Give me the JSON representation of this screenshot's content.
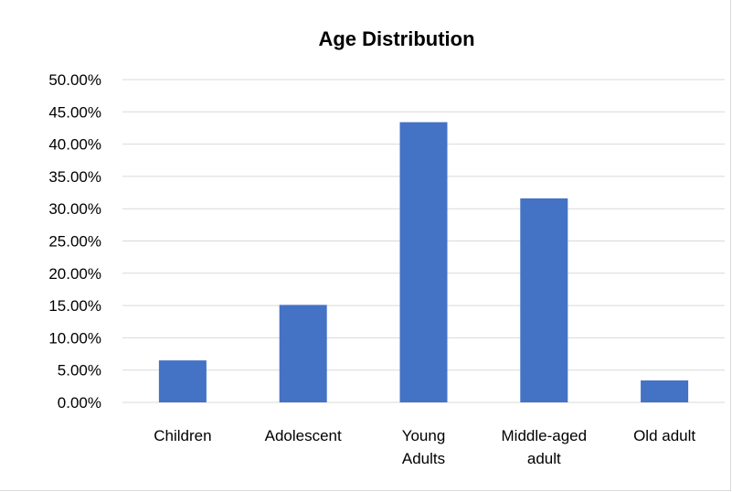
{
  "chart_data": {
    "type": "bar",
    "title": "Age Distribution",
    "categories": [
      [
        "Children"
      ],
      [
        "Adolescent"
      ],
      [
        "Young",
        "Adults"
      ],
      [
        "Middle-aged",
        "adult"
      ],
      [
        "Old adult"
      ]
    ],
    "category_labels": [
      "Children",
      "Adolescent",
      "Young Adults",
      "Middle-aged adult",
      "Old adult"
    ],
    "values": [
      6.5,
      15.1,
      43.4,
      31.6,
      3.4
    ],
    "ylim": [
      0,
      50
    ],
    "ytick_step": 5,
    "ytick_labels": [
      "0.00%",
      "5.00%",
      "10.00%",
      "15.00%",
      "20.00%",
      "25.00%",
      "30.00%",
      "35.00%",
      "40.00%",
      "45.00%",
      "50.00%"
    ],
    "xlabel": "",
    "ylabel": "",
    "grid": true,
    "legend": false,
    "bar_color": "#4472C4"
  }
}
